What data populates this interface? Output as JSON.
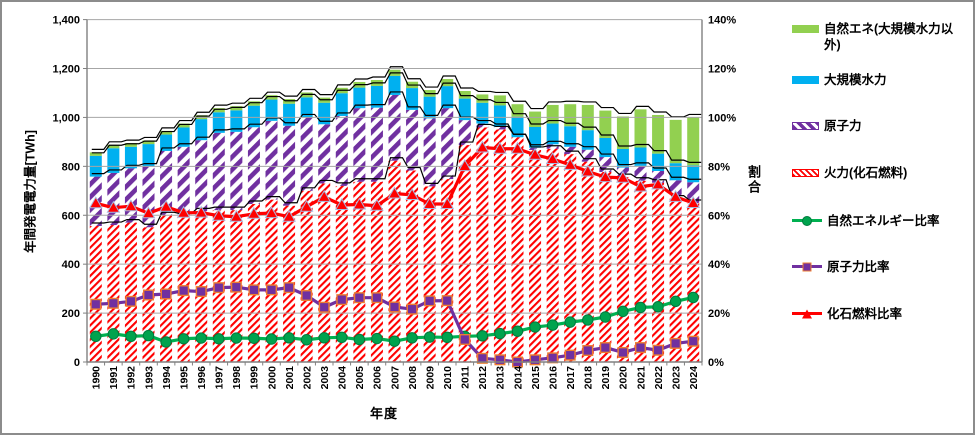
{
  "figure": {
    "left_axis": {
      "title": "年間発電電力量[TWh]",
      "tick_labels": [
        "0",
        "200",
        "400",
        "600",
        "800",
        "1,000",
        "1,200",
        "1,400"
      ],
      "min": 0,
      "max": 1400,
      "step": 200
    },
    "right_axis": {
      "title": "割合",
      "tick_labels": [
        "0%",
        "20%",
        "40%",
        "60%",
        "80%",
        "100%",
        "120%",
        "140%"
      ],
      "min": 0,
      "max": 140,
      "step": 20
    },
    "x_axis": {
      "title": "年度"
    }
  },
  "legend": {
    "items": [
      {
        "label": "自然エネ(大規模水力以外)",
        "swatch": "bar",
        "pattern": "solid",
        "color": "#92D050"
      },
      {
        "label": "大規模水力",
        "swatch": "bar",
        "pattern": "solid",
        "color": "#00B0F0"
      },
      {
        "label": "原子力",
        "swatch": "bar",
        "pattern": "hatch",
        "color": "#7030A0"
      },
      {
        "label": "火力(化石燃料)",
        "swatch": "bar",
        "pattern": "hatch",
        "color": "#FF0000"
      },
      {
        "label": "自然エネルギー比率",
        "swatch": "line",
        "marker": "circle",
        "color": "#00B050"
      },
      {
        "label": "原子力比率",
        "swatch": "line",
        "marker": "square",
        "color": "#7030A0"
      },
      {
        "label": "化石燃料比率",
        "swatch": "line",
        "marker": "triangle",
        "color": "#FF0000"
      }
    ]
  },
  "chart_data": {
    "type": "combo-stacked-bar-line",
    "title": "",
    "xlabel": "年度",
    "ylabel": "年間発電電力量[TWh]",
    "y2label": "割合",
    "ylim": [
      0,
      1400
    ],
    "y2lim": [
      0,
      140
    ],
    "grid": true,
    "legend_position": "right",
    "categories": [
      "1990",
      "1991",
      "1992",
      "1993",
      "1994",
      "1995",
      "1996",
      "1997",
      "1998",
      "1999",
      "2000",
      "2001",
      "2002",
      "2003",
      "2004",
      "2005",
      "2006",
      "2007",
      "2008",
      "2009",
      "2010",
      "2011",
      "2012",
      "2013",
      "2014",
      "2015",
      "2016",
      "2017",
      "2018",
      "2019",
      "2020",
      "2021",
      "2022",
      "2023",
      "2024"
    ],
    "bar_unit": "TWh",
    "stack_order": "bottom-to-top",
    "bar_series": [
      {
        "name": "火力(化石燃料)",
        "style": "hatch-red",
        "color": "#FF0000",
        "values": [
          556,
          560,
          570,
          551,
          600,
          595,
          616,
          621,
          621,
          646,
          664,
          639,
          700,
          730,
          720,
          737,
          737,
          823,
          783,
          718,
          748,
          887,
          959,
          951,
          919,
          867,
          872,
          850,
          819,
          777,
          756,
          741,
          733,
          668,
          650
        ]
      },
      {
        "name": "原子力",
        "style": "hatch-purple",
        "color": "#7030A0",
        "values": [
          202,
          213,
          222,
          248,
          263,
          285,
          291,
          316,
          320,
          314,
          322,
          327,
          300,
          242,
          286,
          301,
          303,
          269,
          248,
          278,
          290,
          102,
          16,
          10,
          0,
          9,
          18,
          30,
          49,
          61,
          39,
          61,
          48,
          75,
          85
        ]
      },
      {
        "name": "大規模水力",
        "style": "solid-blue",
        "color": "#00B0F0",
        "values": [
          85,
          101,
          88,
          92,
          67,
          79,
          86,
          84,
          88,
          88,
          87,
          90,
          82,
          88,
          93,
          84,
          89,
          78,
          89,
          89,
          90,
          88,
          85,
          88,
          84,
          85,
          85,
          84,
          80,
          78,
          76,
          75,
          71,
          70,
          69
        ]
      },
      {
        "name": "自然エネ(大規模水力以外)",
        "style": "solid-green",
        "color": "#92D050",
        "values": [
          14,
          14,
          15,
          15,
          15,
          16,
          16,
          17,
          17,
          18,
          18,
          19,
          20,
          21,
          22,
          23,
          24,
          25,
          26,
          27,
          29,
          31,
          34,
          41,
          51,
          63,
          76,
          90,
          103,
          112,
          133,
          156,
          158,
          177,
          196
        ]
      }
    ],
    "line_unit": "%",
    "line_series": [
      {
        "name": "自然エネルギー比率",
        "color": "#00B050",
        "marker": "circle",
        "marker_fill": "#00A34E",
        "marker_stroke": "#007B3D",
        "values": [
          10.5,
          11.5,
          10.5,
          10.8,
          8.2,
          9.5,
          9.8,
          9.5,
          9.8,
          9.7,
          9.4,
          9.9,
          9.1,
          9.9,
          10.1,
          9.2,
          9.6,
          8.5,
          9.9,
          10.2,
          10.1,
          10.5,
          10.7,
          11.6,
          12.6,
          14.3,
          15.1,
          16.3,
          17.2,
          18.4,
          20.7,
          22.3,
          22.6,
          24.8,
          26.4
        ]
      },
      {
        "name": "原子力比率",
        "color": "#7030A0",
        "marker": "square",
        "marker_fill": "#7030A0",
        "marker_stroke": "#ED7D31",
        "values": [
          23.6,
          24.0,
          24.8,
          27.4,
          27.8,
          29.2,
          28.8,
          30.4,
          30.6,
          29.5,
          29.5,
          30.4,
          27.2,
          22.4,
          25.5,
          26.3,
          26.3,
          22.5,
          21.6,
          25.0,
          25.1,
          9.2,
          1.5,
          0.9,
          0.0,
          0.9,
          1.7,
          2.8,
          4.7,
          5.9,
          3.9,
          5.9,
          4.8,
          7.6,
          8.5
        ]
      },
      {
        "name": "化石燃料比率",
        "color": "#FF0000",
        "marker": "triangle",
        "marker_fill": "#FF0000",
        "marker_stroke": "#A8B9DF",
        "values": [
          64.9,
          63.1,
          63.7,
          60.8,
          63.5,
          61.0,
          61.1,
          59.8,
          59.4,
          60.6,
          60.9,
          59.4,
          63.5,
          67.5,
          64.2,
          64.4,
          63.9,
          68.9,
          68.3,
          64.6,
          64.6,
          80.1,
          87.7,
          87.2,
          87.2,
          84.7,
          83.0,
          80.6,
          77.9,
          75.6,
          75.3,
          71.7,
          72.6,
          67.5,
          65.0
        ]
      }
    ],
    "colors": {
      "grid": "#A6A6A6",
      "axis": "#808080",
      "bar_shadow": "#000000"
    }
  }
}
